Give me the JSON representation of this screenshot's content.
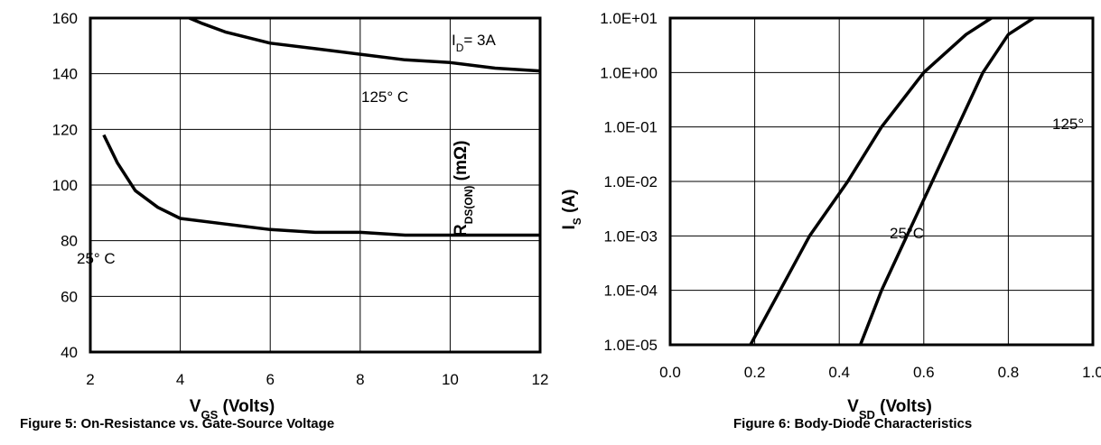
{
  "chart_data": [
    {
      "type": "line",
      "title": "",
      "caption": "Figure 5: On-Resistance vs. Gate-Source Voltage",
      "xlabel_main": "V",
      "xlabel_sub": "GS",
      "xlabel_unit": " (Volts)",
      "ylabel_main": "R",
      "ylabel_sub": "DS(ON)",
      "ylabel_unit": " (mΩ)",
      "xlim": [
        2,
        12
      ],
      "ylim": [
        40,
        160
      ],
      "xticks": [
        "2",
        "4",
        "6",
        "8",
        "10",
        "12"
      ],
      "xtick_values": [
        2,
        4,
        6,
        8,
        10,
        12
      ],
      "yticks": [
        "40",
        "60",
        "80",
        "100",
        "120",
        "140",
        "160"
      ],
      "ytick_values": [
        40,
        60,
        80,
        100,
        120,
        140,
        160
      ],
      "annotation_id": "I",
      "annotation_id_sub": "D",
      "annotation_id_value": "= 3A",
      "series": [
        {
          "name": "125° C",
          "x": [
            4.2,
            4.5,
            5,
            6,
            7,
            8,
            9,
            10,
            11,
            12
          ],
          "y": [
            160,
            158,
            155,
            151,
            149,
            147,
            145,
            144,
            142,
            141
          ]
        },
        {
          "name": "25° C",
          "x": [
            2.3,
            2.6,
            3,
            3.5,
            4,
            5,
            6,
            7,
            8,
            9,
            10,
            11,
            12
          ],
          "y": [
            118,
            108,
            98,
            92,
            88,
            86,
            84,
            83,
            83,
            82,
            82,
            82,
            82
          ]
        }
      ]
    },
    {
      "type": "line",
      "title": "",
      "caption": "Figure 6: Body-Diode Characteristics",
      "xlabel_main": "V",
      "xlabel_sub": "SD",
      "xlabel_unit": " (Volts)",
      "ylabel_main": "I",
      "ylabel_sub": "S",
      "ylabel_unit": " (A)",
      "xlim": [
        0.0,
        1.0
      ],
      "ylim": [
        1e-05,
        10
      ],
      "yscale": "log",
      "xticks": [
        "0.0",
        "0.2",
        "0.4",
        "0.6",
        "0.8",
        "1.0"
      ],
      "xtick_values": [
        0.0,
        0.2,
        0.4,
        0.6,
        0.8,
        1.0
      ],
      "yticks": [
        "1.0E-05",
        "1.0E-04",
        "1.0E-03",
        "1.0E-02",
        "1.0E-01",
        "1.0E+00",
        "1.0E+01"
      ],
      "ytick_values": [
        1e-05,
        0.0001,
        0.001,
        0.01,
        0.1,
        1,
        10
      ],
      "series": [
        {
          "name": "125°",
          "x": [
            0.19,
            0.26,
            0.33,
            0.42,
            0.5,
            0.6,
            0.7,
            0.76
          ],
          "y": [
            1e-05,
            0.0001,
            0.001,
            0.01,
            0.1,
            1,
            5,
            10
          ]
        },
        {
          "name": "25°C",
          "x": [
            0.45,
            0.5,
            0.56,
            0.62,
            0.68,
            0.74,
            0.8,
            0.86
          ],
          "y": [
            1e-05,
            0.0001,
            0.001,
            0.01,
            0.1,
            1,
            5,
            10
          ]
        }
      ]
    }
  ]
}
